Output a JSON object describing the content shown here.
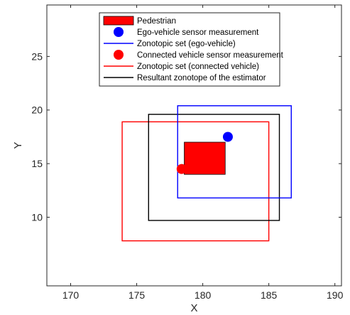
{
  "chart_data": {
    "type": "scatter",
    "xlabel": "X",
    "ylabel": "Y",
    "xlim": [
      168.2,
      190.5
    ],
    "ylim": [
      3.6,
      29.8
    ],
    "xticks": [
      170,
      175,
      180,
      185,
      190
    ],
    "yticks": [
      10,
      15,
      20,
      25
    ],
    "grid": false,
    "legend_position": "top",
    "pedestrian": {
      "x_min": 178.6,
      "x_max": 181.7,
      "y_min": 14.0,
      "y_max": 17.0,
      "color": "#ff0000"
    },
    "ego_measurement": {
      "x": 181.9,
      "y": 17.5,
      "color": "#0000ff"
    },
    "connected_measurement": {
      "x": 178.4,
      "y": 14.5,
      "color": "#ff0000"
    },
    "zonotope_ego": {
      "x_min": 178.1,
      "x_max": 186.7,
      "y_min": 11.8,
      "y_max": 20.4,
      "color": "#0000ff"
    },
    "zonotope_connected": {
      "x_min": 173.9,
      "x_max": 185.0,
      "y_min": 7.8,
      "y_max": 18.9,
      "color": "#ff0000"
    },
    "zonotope_estimator": {
      "x_min": 175.9,
      "x_max": 185.8,
      "y_min": 9.7,
      "y_max": 19.6,
      "color": "#000000"
    },
    "legend": [
      {
        "key": "pedestrian",
        "label": "Pedestrian",
        "marker": "patch",
        "color": "#ff0000"
      },
      {
        "key": "ego_measurement",
        "label": "Ego-vehicle sensor measurement",
        "marker": "dot",
        "color": "#0000ff"
      },
      {
        "key": "zonotope_ego",
        "label": "Zonotopic set (ego-vehicle)",
        "marker": "line",
        "color": "#0000ff"
      },
      {
        "key": "connected_measurement",
        "label": "Connected vehicle sensor measurement",
        "marker": "dot",
        "color": "#ff0000"
      },
      {
        "key": "zonotope_connected",
        "label": "Zonotopic set (connected vehicle)",
        "marker": "line",
        "color": "#ff0000"
      },
      {
        "key": "zonotope_estimator",
        "label": "Resultant zonotope of the estimator",
        "marker": "line",
        "color": "#000000"
      }
    ]
  }
}
